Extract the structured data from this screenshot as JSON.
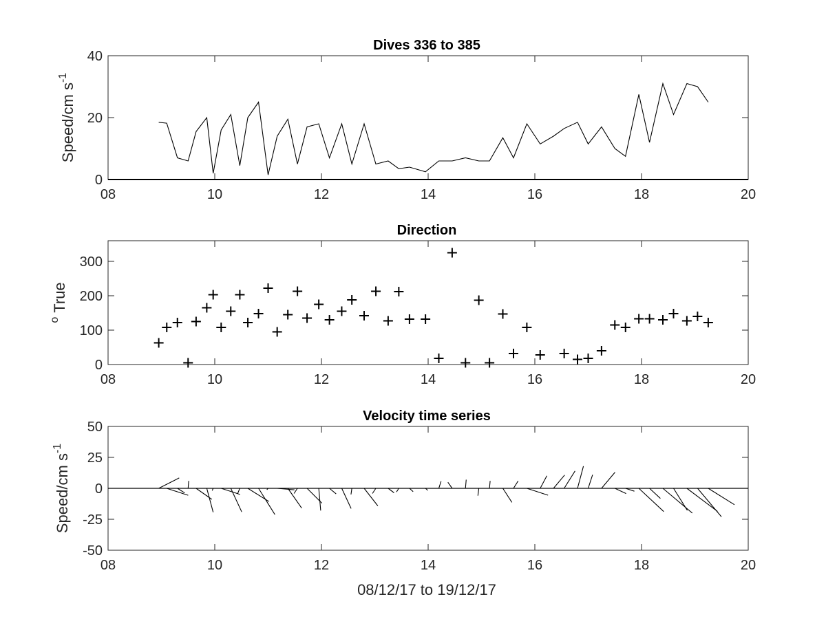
{
  "chart_data": [
    {
      "type": "line",
      "title": "Dives 336 to 385",
      "ylabel": "Speed/cm s",
      "ylabel_superscript": "-1",
      "xlim": [
        8,
        20
      ],
      "ylim": [
        0,
        40
      ],
      "xticks": [
        "08",
        "10",
        "12",
        "14",
        "16",
        "18",
        "20"
      ],
      "yticks": [
        "0",
        "20",
        "40"
      ],
      "grid": false,
      "series": [
        {
          "x": [
            8.95,
            9.1,
            9.3,
            9.5,
            9.65,
            9.85,
            9.97,
            10.12,
            10.3,
            10.47,
            10.62,
            10.82,
            11.0,
            11.17,
            11.37,
            11.55,
            11.73,
            11.95,
            12.15,
            12.38,
            12.57,
            12.8,
            13.02,
            13.25,
            13.45,
            13.65,
            13.95,
            14.2,
            14.45,
            14.7,
            14.95,
            15.15,
            15.4,
            15.6,
            15.85,
            16.1,
            16.35,
            16.55,
            16.8,
            17.0,
            17.25,
            17.5,
            17.7,
            17.95,
            18.15,
            18.4,
            18.6,
            18.85,
            19.05,
            19.25
          ],
          "values": [
            18.5,
            18.2,
            7.0,
            6.0,
            15.5,
            20.0,
            2.0,
            16.0,
            21.0,
            4.5,
            20.0,
            25.0,
            1.5,
            14.0,
            19.5,
            5.0,
            17.0,
            18.0,
            7.0,
            18.0,
            5.0,
            18.0,
            5.0,
            6.0,
            3.5,
            4.0,
            2.5,
            6.0,
            6.0,
            7.0,
            6.0,
            6.0,
            13.5,
            7.0,
            18.0,
            11.5,
            14.0,
            16.5,
            18.5,
            11.5,
            17.0,
            10.0,
            7.5,
            27.5,
            12.0,
            31.0,
            21.0,
            31.0,
            30.0,
            25.0
          ]
        }
      ]
    },
    {
      "type": "scatter",
      "title": "Direction",
      "ylabel": "True",
      "ylabel_superscript": "o",
      "xlim": [
        8,
        20
      ],
      "ylim": [
        0,
        360
      ],
      "xticks": [
        "08",
        "10",
        "12",
        "14",
        "16",
        "18",
        "20"
      ],
      "yticks": [
        "0",
        "100",
        "200",
        "300"
      ],
      "marker": "+",
      "grid": false,
      "series": [
        {
          "x": [
            8.95,
            9.1,
            9.3,
            9.5,
            9.65,
            9.85,
            9.97,
            10.12,
            10.3,
            10.47,
            10.62,
            10.82,
            11.0,
            11.17,
            11.37,
            11.55,
            11.73,
            11.95,
            12.15,
            12.38,
            12.57,
            12.8,
            13.02,
            13.25,
            13.45,
            13.65,
            13.95,
            14.2,
            14.45,
            14.7,
            14.95,
            15.15,
            15.4,
            15.6,
            15.85,
            16.1,
            16.55,
            16.8,
            17.0,
            17.25,
            17.5,
            17.7,
            17.95,
            18.15,
            18.4,
            18.6,
            18.85,
            19.05,
            19.25
          ],
          "values": [
            63,
            108,
            122,
            5,
            125,
            165,
            203,
            108,
            155,
            203,
            122,
            148,
            222,
            95,
            145,
            213,
            135,
            175,
            130,
            155,
            188,
            142,
            213,
            127,
            212,
            132,
            132,
            18,
            325,
            5,
            187,
            5,
            147,
            32,
            108,
            28,
            32,
            15,
            18,
            40,
            115,
            108,
            133,
            133,
            130,
            148,
            127,
            140,
            122
          ]
        }
      ]
    },
    {
      "type": "quiver",
      "title": "Velocity time series",
      "xlabel": "08/12/17 to 19/12/17",
      "ylabel": "Speed/cm s",
      "ylabel_superscript": "-1",
      "xlim": [
        8,
        20
      ],
      "ylim": [
        -50,
        50
      ],
      "xticks": [
        "08",
        "10",
        "12",
        "14",
        "16",
        "18",
        "20"
      ],
      "yticks": [
        "-50",
        "-25",
        "0",
        "25",
        "50"
      ],
      "grid": false,
      "baseline": 0,
      "series": [
        {
          "x": [
            8.95,
            9.1,
            9.3,
            9.5,
            9.65,
            9.85,
            9.97,
            10.12,
            10.3,
            10.47,
            10.62,
            10.82,
            11.0,
            11.17,
            11.37,
            11.55,
            11.73,
            11.95,
            12.15,
            12.38,
            12.57,
            12.8,
            13.02,
            13.25,
            13.45,
            13.65,
            13.95,
            14.2,
            14.45,
            14.7,
            14.95,
            15.15,
            15.4,
            15.6,
            15.85,
            16.1,
            16.35,
            16.55,
            16.8,
            17.0,
            17.25,
            17.5,
            17.7,
            17.95,
            18.15,
            18.4,
            18.6,
            18.85,
            19.05,
            19.25
          ],
          "speed": [
            18.5,
            18.2,
            7.0,
            6.0,
            15.5,
            20.0,
            2.0,
            16.0,
            21.0,
            4.5,
            20.0,
            25.0,
            1.5,
            14.0,
            19.5,
            5.0,
            17.0,
            18.0,
            7.0,
            18.0,
            5.0,
            18.0,
            5.0,
            6.0,
            3.5,
            4.0,
            2.5,
            6.0,
            6.0,
            7.0,
            6.0,
            6.0,
            13.5,
            7.0,
            18.0,
            11.5,
            14.0,
            16.5,
            18.5,
            11.5,
            17.0,
            10.0,
            7.5,
            27.5,
            12.0,
            31.0,
            21.0,
            31.0,
            30.0,
            25.0
          ],
          "direction": [
            63,
            108,
            122,
            5,
            125,
            165,
            203,
            108,
            155,
            203,
            122,
            148,
            222,
            95,
            145,
            213,
            135,
            175,
            130,
            155,
            188,
            142,
            213,
            127,
            212,
            132,
            132,
            18,
            325,
            5,
            187,
            5,
            147,
            32,
            108,
            28,
            40,
            32,
            15,
            18,
            40,
            115,
            108,
            133,
            133,
            130,
            148,
            127,
            140,
            122
          ]
        }
      ]
    }
  ]
}
